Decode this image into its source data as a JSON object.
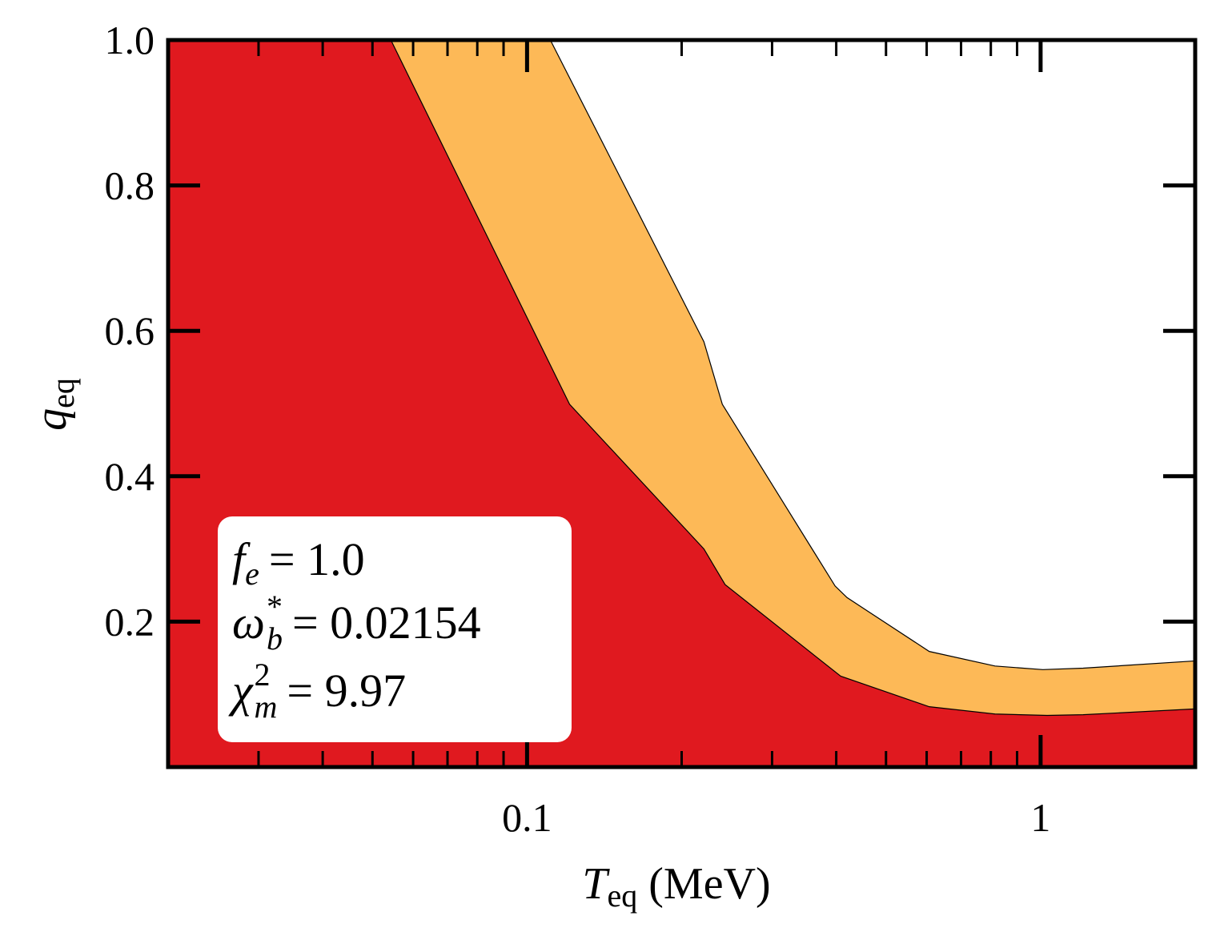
{
  "chart_data": {
    "type": "area",
    "xlabel": {
      "symbol": "T",
      "sub": "eq",
      "text": "(MeV)"
    },
    "ylabel": {
      "symbol": "q",
      "sub": "eq"
    },
    "xscale": "log",
    "xlim": [
      0.02,
      2
    ],
    "ylim": [
      0,
      1
    ],
    "xticks": [
      0.1,
      1
    ],
    "xminorticks": [
      0.03,
      0.04,
      0.05,
      0.06,
      0.07,
      0.08,
      0.09,
      0.2,
      0.3,
      0.4,
      0.5,
      0.6,
      0.7,
      0.8,
      0.9
    ],
    "yticks": [
      0.2,
      0.4,
      0.6,
      0.8,
      {
        "value": 1,
        "label": "1.0"
      }
    ],
    "series": [
      {
        "color": "#fdb957",
        "x": [
          0.02,
          0.111,
          0.221,
          0.24,
          0.398,
          0.42,
          0.607,
          0.815,
          1.01,
          1.21,
          2
        ],
        "values": [
          1,
          1,
          0.585,
          0.499,
          0.249,
          0.233,
          0.159,
          0.139,
          0.134,
          0.136,
          0.146
        ]
      },
      {
        "color": "#e0191f",
        "x": [
          0.02,
          0.0543,
          0.121,
          0.221,
          0.243,
          0.408,
          0.607,
          0.815,
          1.03,
          1.21,
          2
        ],
        "values": [
          1,
          1,
          0.499,
          0.3,
          0.251,
          0.125,
          0.083,
          0.073,
          0.071,
          0.072,
          0.08
        ]
      }
    ],
    "annotations": [
      {
        "symbol": "f",
        "sub": "e",
        "text": "= 1.0"
      },
      {
        "symbol": "ω",
        "sub": "b",
        "sup": "*",
        "text": "= 0.02154"
      },
      {
        "symbol": "χ",
        "sub": "m",
        "sup": "2",
        "text": "= 9.97"
      }
    ]
  }
}
